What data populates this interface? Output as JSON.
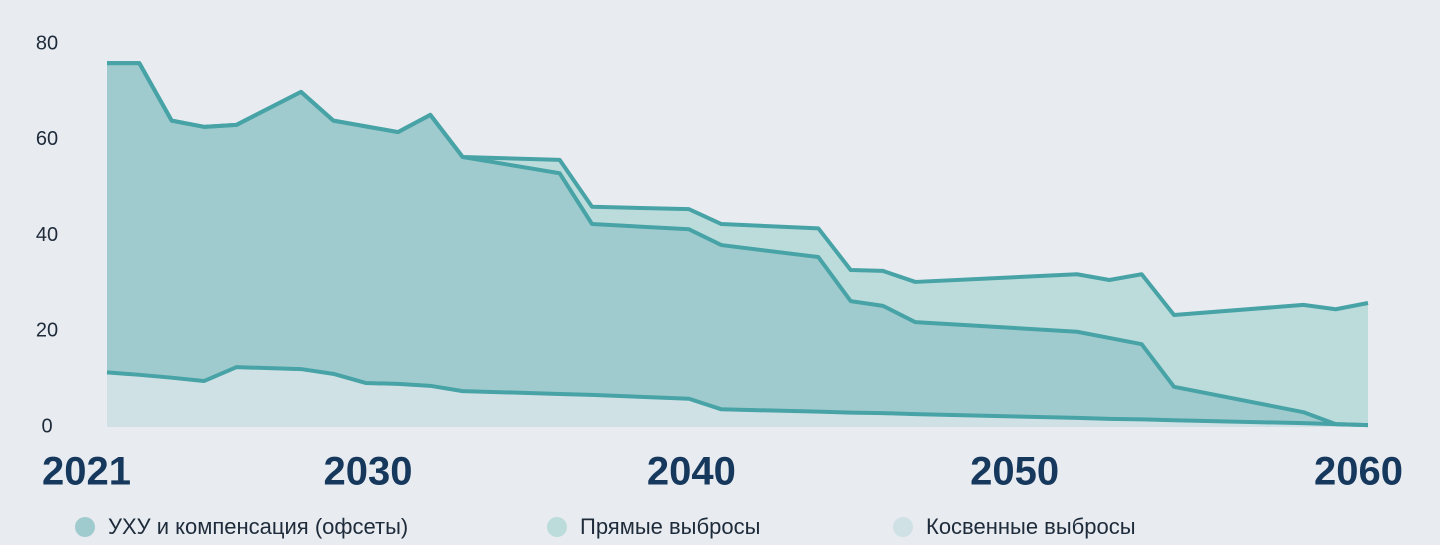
{
  "chart_data": {
    "type": "stacked_area",
    "x": [
      2021,
      2022,
      2023,
      2024,
      2025,
      2027,
      2028,
      2029,
      2030,
      2031,
      2032,
      2035,
      2036,
      2039,
      2040,
      2043,
      2044,
      2045,
      2046,
      2051,
      2052,
      2053,
      2054,
      2058,
      2059,
      2060
    ],
    "series": [
      {
        "name": "Косвенные выбросы",
        "color": "#cfe1e5",
        "values": [
          11.4,
          10.9,
          10.3,
          9.6,
          12.5,
          12.1,
          11.1,
          9.2,
          9.0,
          8.6,
          7.5,
          6.9,
          6.7,
          5.9,
          3.7,
          3.2,
          3.0,
          2.9,
          2.7,
          1.9,
          1.7,
          1.6,
          1.4,
          0.8,
          0.6,
          0.4
        ]
      },
      {
        "name": "УХУ и компенсация (офсеты)",
        "color": "#a0cbce",
        "values": [
          64.6,
          65.1,
          53.7,
          53.1,
          50.6,
          57.9,
          52.9,
          53.6,
          52.6,
          56.6,
          48.9,
          46.1,
          35.7,
          35.4,
          34.3,
          32.3,
          23.3,
          22.4,
          19.2,
          18.0,
          16.9,
          15.7,
          7.0,
          2.3,
          0,
          0
        ]
      },
      {
        "name": "Прямые выбросы",
        "color": "#bcdcdc",
        "values": [
          0,
          0,
          0,
          0,
          0,
          0,
          0,
          0,
          0,
          0,
          0,
          2.8,
          3.6,
          4.2,
          4.4,
          6.0,
          6.5,
          7.3,
          8.4,
          12.0,
          12.1,
          14.6,
          15.0,
          22.4,
          24.0,
          25.5
        ]
      }
    ],
    "legend_order": [
      1,
      2,
      0
    ],
    "line_color": "#47a3a6",
    "xlim": [
      2021,
      2060
    ],
    "xticks": [
      2021,
      2030,
      2040,
      2050,
      2060
    ],
    "ylim": [
      0,
      80
    ],
    "yticks": [
      0,
      20,
      40,
      60,
      80
    ],
    "grid": false
  }
}
